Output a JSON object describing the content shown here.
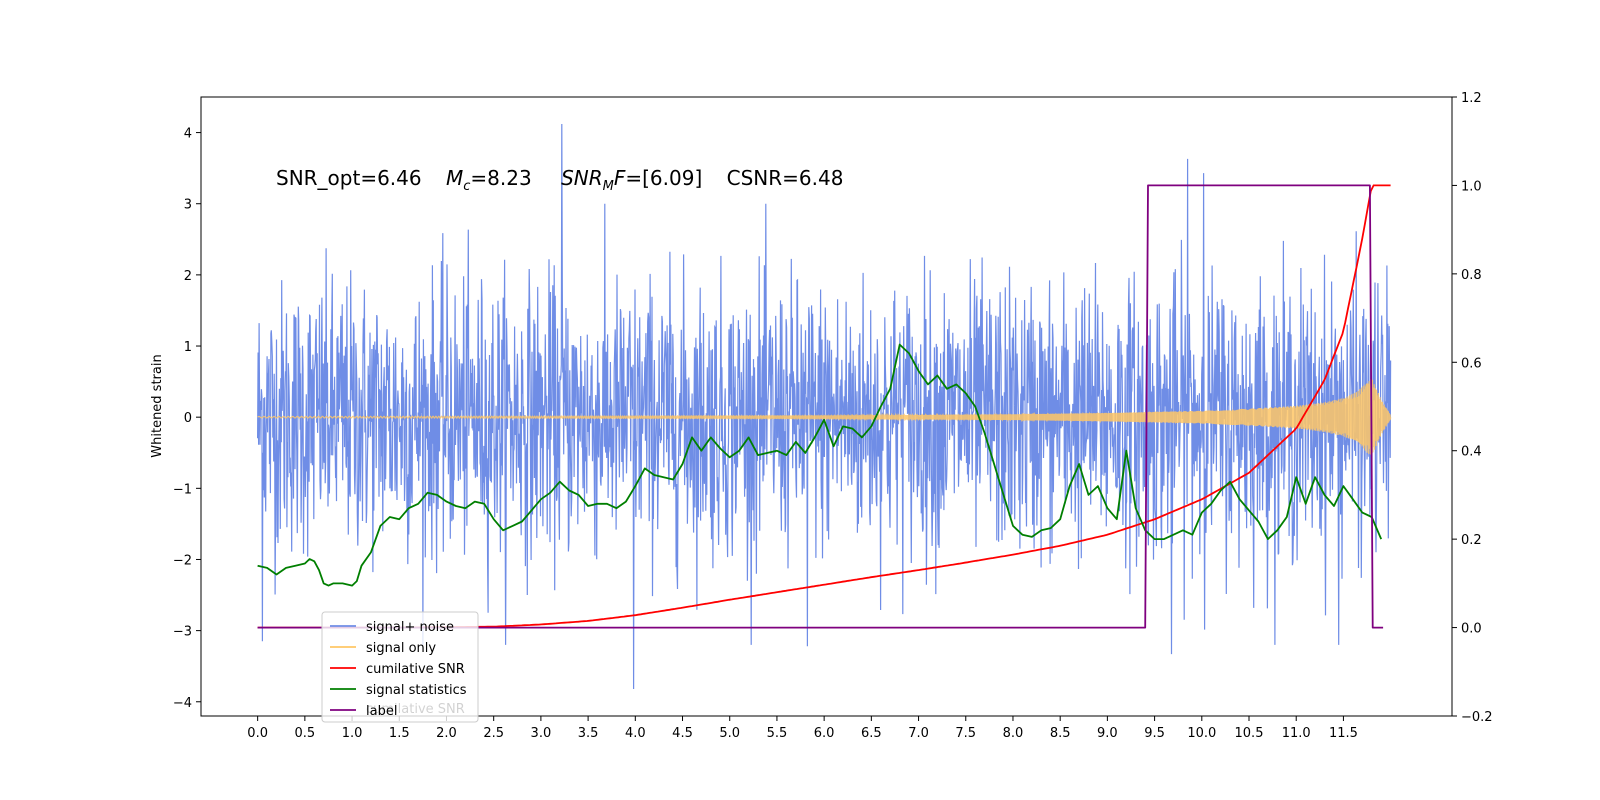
{
  "chart_data": {
    "type": "line",
    "annotation": {
      "snr_opt": "SNR_opt=6.46",
      "mc_sym": "M",
      "mc_sub": "c",
      "mc_val": "=8.23",
      "snrmf_sym": "SNR",
      "snrmf_sub": "M",
      "snrmf_f": "F",
      "snrmf_val": "=[6.09]",
      "csnr": "CSNR=6.48"
    },
    "ylabel": "Whitened strain",
    "xlim": [
      -0.6,
      12.65
    ],
    "ylim_left": [
      -4.2,
      4.5
    ],
    "ylim_right": [
      -0.2,
      1.2
    ],
    "x_ticks": [
      0.0,
      0.5,
      1.0,
      1.5,
      2.0,
      2.5,
      3.0,
      3.5,
      4.0,
      4.5,
      5.0,
      5.5,
      6.0,
      6.5,
      7.0,
      7.5,
      8.0,
      8.5,
      9.0,
      9.5,
      10.0,
      10.5,
      11.0,
      11.5
    ],
    "x_tick_labels": [
      "0.0",
      "0.5",
      "1.0",
      "1.5",
      "2.0",
      "2.5",
      "3.0",
      "3.5",
      "4.0",
      "4.5",
      "5.0",
      "5.5",
      "6.0",
      "6.5",
      "7.0",
      "7.5",
      "8.0",
      "8.5",
      "9.0",
      "9.5",
      "10.0",
      "10.5",
      "11.0",
      "11.5"
    ],
    "y_left_ticks": [
      -4,
      -3,
      -2,
      -1,
      0,
      1,
      2,
      3,
      4
    ],
    "y_left_tick_labels": [
      "−4",
      "−3",
      "−2",
      "−1",
      "0",
      "1",
      "2",
      "3",
      "4"
    ],
    "y_right_ticks": [
      -0.2,
      0.0,
      0.2,
      0.4,
      0.6,
      0.8,
      1.0,
      1.2
    ],
    "y_right_tick_labels": [
      "−0.2",
      "0.0",
      "0.2",
      "0.4",
      "0.6",
      "0.8",
      "1.0",
      "1.2"
    ],
    "legend": [
      {
        "label": "signal+ noise",
        "color": "#6f8de6"
      },
      {
        "label": "signal only",
        "color": "#ffc766"
      },
      {
        "label": "cumilative SNR",
        "color": "#ff0000"
      },
      {
        "label": "signal statistics",
        "color": "#007f00"
      },
      {
        "label": "label",
        "color": "#7f007f"
      }
    ],
    "legend_overlap_text": "cumilative SNR",
    "legend_placement": "lower-left",
    "series": [
      {
        "name": "signal+ noise",
        "axis": "left",
        "color": "#6f8de6",
        "x_range": [
          0.0,
          12.0
        ],
        "approx_range": [
          -3.8,
          4.1
        ],
        "peaks": [
          {
            "x": 3.22,
            "y": 4.12
          },
          {
            "x": 9.85,
            "y": 3.63
          },
          {
            "x": 10.02,
            "y": 3.43
          },
          {
            "x": 3.98,
            "y": -3.82
          },
          {
            "x": 9.68,
            "y": -3.33
          },
          {
            "x": 0.05,
            "y": -3.15
          },
          {
            "x": 5.82,
            "y": -3.22
          },
          {
            "x": 11.45,
            "y": -3.2
          }
        ]
      },
      {
        "name": "signal only",
        "axis": "left",
        "color": "#ffc766",
        "envelope": {
          "x": [
            0,
            6.0,
            8.0,
            9.0,
            10.0,
            10.5,
            11.0,
            11.3,
            11.5,
            11.65,
            11.75,
            11.8,
            11.9,
            12.0
          ],
          "amp": [
            0.01,
            0.02,
            0.04,
            0.06,
            0.09,
            0.12,
            0.16,
            0.21,
            0.27,
            0.36,
            0.5,
            0.55,
            0.25,
            0.03
          ]
        }
      },
      {
        "name": "cumilative SNR",
        "axis": "right",
        "color": "#ff0000",
        "x": [
          0,
          1.5,
          2.5,
          3.0,
          3.5,
          4.0,
          4.5,
          5.0,
          5.5,
          6.0,
          6.5,
          7.0,
          7.5,
          8.0,
          8.5,
          9.0,
          9.5,
          10.0,
          10.5,
          11.0,
          11.3,
          11.5,
          11.7,
          11.8,
          12.0
        ],
        "y": [
          0.0,
          0.0,
          0.002,
          0.007,
          0.015,
          0.028,
          0.045,
          0.063,
          0.08,
          0.097,
          0.114,
          0.13,
          0.147,
          0.165,
          0.185,
          0.21,
          0.245,
          0.29,
          0.35,
          0.45,
          0.56,
          0.67,
          0.88,
          1.0,
          1.0
        ]
      },
      {
        "name": "signal statistics",
        "axis": "right",
        "color": "#007f00",
        "x": [
          0.0,
          0.1,
          0.2,
          0.3,
          0.4,
          0.5,
          0.55,
          0.6,
          0.65,
          0.7,
          0.75,
          0.8,
          0.9,
          1.0,
          1.05,
          1.1,
          1.2,
          1.3,
          1.4,
          1.5,
          1.6,
          1.7,
          1.8,
          1.9,
          2.0,
          2.1,
          2.2,
          2.3,
          2.4,
          2.5,
          2.6,
          2.7,
          2.8,
          2.9,
          3.0,
          3.1,
          3.2,
          3.3,
          3.4,
          3.5,
          3.6,
          3.7,
          3.8,
          3.9,
          4.0,
          4.1,
          4.2,
          4.3,
          4.4,
          4.5,
          4.6,
          4.7,
          4.8,
          4.9,
          5.0,
          5.1,
          5.2,
          5.3,
          5.4,
          5.5,
          5.6,
          5.7,
          5.8,
          5.9,
          6.0,
          6.1,
          6.2,
          6.3,
          6.4,
          6.5,
          6.6,
          6.7,
          6.8,
          6.9,
          7.0,
          7.1,
          7.2,
          7.3,
          7.4,
          7.5,
          7.6,
          7.7,
          7.8,
          7.9,
          8.0,
          8.1,
          8.2,
          8.3,
          8.4,
          8.5,
          8.6,
          8.7,
          8.8,
          8.9,
          9.0,
          9.1,
          9.2,
          9.3,
          9.4,
          9.5,
          9.6,
          9.7,
          9.8,
          9.9,
          10.0,
          10.1,
          10.2,
          10.3,
          10.4,
          10.5,
          10.6,
          10.7,
          10.8,
          10.9,
          11.0,
          11.1,
          11.2,
          11.3,
          11.4,
          11.5,
          11.6,
          11.7,
          11.8,
          11.9
        ],
        "y": [
          0.14,
          0.135,
          0.12,
          0.135,
          0.14,
          0.145,
          0.155,
          0.15,
          0.13,
          0.1,
          0.095,
          0.1,
          0.1,
          0.095,
          0.105,
          0.14,
          0.17,
          0.23,
          0.25,
          0.245,
          0.27,
          0.28,
          0.305,
          0.3,
          0.285,
          0.275,
          0.27,
          0.285,
          0.28,
          0.245,
          0.22,
          0.23,
          0.24,
          0.265,
          0.29,
          0.305,
          0.33,
          0.31,
          0.3,
          0.275,
          0.28,
          0.28,
          0.27,
          0.285,
          0.32,
          0.36,
          0.345,
          0.34,
          0.335,
          0.37,
          0.43,
          0.4,
          0.43,
          0.405,
          0.385,
          0.4,
          0.43,
          0.39,
          0.395,
          0.4,
          0.39,
          0.42,
          0.395,
          0.43,
          0.47,
          0.41,
          0.455,
          0.45,
          0.43,
          0.455,
          0.5,
          0.54,
          0.64,
          0.62,
          0.58,
          0.55,
          0.57,
          0.54,
          0.55,
          0.53,
          0.5,
          0.44,
          0.37,
          0.3,
          0.23,
          0.21,
          0.205,
          0.22,
          0.225,
          0.245,
          0.32,
          0.37,
          0.3,
          0.32,
          0.27,
          0.245,
          0.4,
          0.27,
          0.22,
          0.2,
          0.2,
          0.21,
          0.22,
          0.21,
          0.26,
          0.28,
          0.31,
          0.33,
          0.29,
          0.265,
          0.24,
          0.2,
          0.22,
          0.25,
          0.34,
          0.28,
          0.34,
          0.3,
          0.275,
          0.32,
          0.29,
          0.26,
          0.25,
          0.2
        ]
      },
      {
        "name": "label",
        "axis": "right",
        "color": "#7f007f",
        "x": [
          0.0,
          9.4,
          9.43,
          11.78,
          11.81,
          11.92
        ],
        "y": [
          0.0,
          0.0,
          1.0,
          1.0,
          0.0,
          0.0
        ]
      }
    ]
  }
}
